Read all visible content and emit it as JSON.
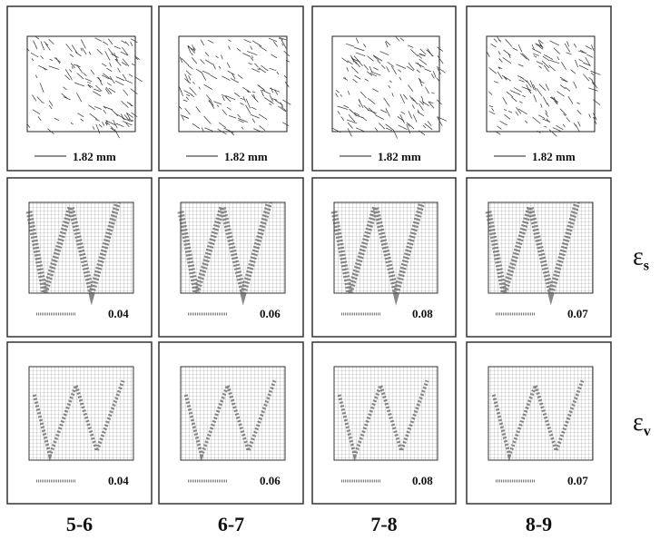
{
  "columns": [
    "5-6",
    "6-7",
    "7-8",
    "8-9"
  ],
  "rows": [
    {
      "scale_labels": [
        "1.82 mm",
        "1.82 mm",
        "1.82 mm",
        "1.82 mm"
      ]
    },
    {
      "symbol": "ε",
      "subscript": "s",
      "scale_labels": [
        "0.04",
        "0.06",
        "0.08",
        "0.07"
      ]
    },
    {
      "symbol": "ε",
      "subscript": "v",
      "scale_labels": [
        "0.04",
        "0.06",
        "0.08",
        "0.07"
      ]
    }
  ]
}
